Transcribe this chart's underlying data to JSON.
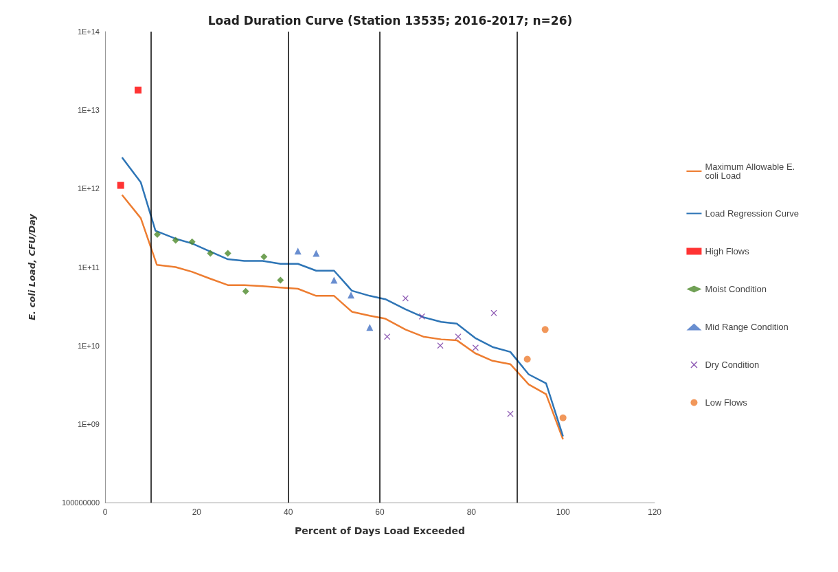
{
  "chart_data": {
    "type": "line",
    "title": "Load Duration Curve (Station 13535; 2016-2017; n=26)",
    "xlabel": "Percent of Days Load Exceeded",
    "ylabel": "E. coli Load, CFU/Day",
    "xlim": [
      0,
      120
    ],
    "xticks": [
      0,
      20,
      40,
      60,
      80,
      100,
      120
    ],
    "ylim": [
      100000000,
      100000000000000
    ],
    "yticks": [
      {
        "value": 100000000,
        "label": "100000000"
      },
      {
        "value": 1000000000,
        "label": "1E+09"
      },
      {
        "value": 10000000000,
        "label": "1E+10"
      },
      {
        "value": 100000000000,
        "label": "1E+11"
      },
      {
        "value": 1000000000000,
        "label": "1E+12"
      },
      {
        "value": 10000000000000,
        "label": "1E+13"
      },
      {
        "value": 100000000000000,
        "label": "1E+14"
      }
    ],
    "log": "y",
    "grid": false,
    "legend": "right",
    "ref_lines": [
      {
        "axis": "x",
        "value": 10,
        "label": null,
        "color": "#000000"
      },
      {
        "axis": "x",
        "value": 40,
        "label": null,
        "color": "#000000"
      },
      {
        "axis": "x",
        "value": 60,
        "label": null,
        "color": "#000000"
      },
      {
        "axis": "x",
        "value": 90,
        "label": null,
        "color": "#000000"
      }
    ],
    "series": [
      {
        "name": "Maximum Allowable E. coli Load",
        "marker": "none",
        "color": "#ed7d31",
        "x": [
          3.7,
          7.8,
          11.3,
          15.4,
          19.0,
          22.7,
          26.8,
          30.4,
          34.4,
          38.3,
          42.1,
          46.1,
          50.0,
          53.9,
          57.8,
          61.2,
          65.6,
          69.5,
          73.4,
          76.8,
          80.8,
          84.6,
          88.5,
          92.5,
          96.3,
          100
        ],
        "values": [
          830000000000,
          420000000000,
          107000000000,
          100000000000,
          87000000000,
          72000000000,
          59000000000,
          59000000000,
          57000000000,
          55000000000,
          53000000000,
          43000000000,
          43000000000,
          27000000000,
          24000000000,
          22000000000,
          16000000000,
          13000000000,
          12000000000,
          11700000000,
          8000000000,
          6400000000,
          5800000000,
          3200000000,
          2400000000,
          640000000
        ]
      },
      {
        "name": "Load Regression Curve",
        "marker": "none",
        "color": "#2e75b6",
        "x": [
          3.7,
          7.8,
          11.0,
          15.4,
          19.0,
          22.7,
          26.8,
          30.4,
          34.4,
          38.3,
          42.1,
          46.1,
          50.0,
          53.9,
          57.8,
          61.2,
          65.6,
          69.5,
          73.4,
          76.8,
          80.8,
          84.6,
          88.5,
          92.5,
          96.3,
          100
        ],
        "values": [
          2500000000000,
          1200000000000,
          290000000000,
          230000000000,
          200000000000,
          160000000000,
          126000000000,
          120000000000,
          120000000000,
          110000000000,
          110000000000,
          90000000000,
          90000000000,
          50000000000,
          43000000000,
          39000000000,
          29000000000,
          23000000000,
          20000000000,
          19000000000,
          12500000000,
          9600000000,
          8300000000,
          4300000000,
          3300000000,
          700000000
        ]
      },
      {
        "name": "High Flows",
        "type": "scatter",
        "marker": "square",
        "color": "#ff0000",
        "x": [
          3.4,
          7.2
        ],
        "values": [
          1100000000000,
          18000000000000
        ]
      },
      {
        "name": "Moist Condition",
        "type": "scatter",
        "marker": "diamond",
        "color": "#4e8a2c",
        "x": [
          11.4,
          15.4,
          19.0,
          23.0,
          26.8,
          30.7,
          34.7,
          38.3
        ],
        "values": [
          260000000000,
          220000000000,
          210000000000,
          150000000000,
          150000000000,
          49000000000,
          135000000000,
          68000000000
        ]
      },
      {
        "name": "Mid Range Condition",
        "type": "scatter",
        "marker": "triangle",
        "color": "#4472c4",
        "x": [
          42.1,
          46.1,
          50.0,
          53.7,
          57.8
        ],
        "values": [
          160000000000,
          150000000000,
          68000000000,
          44000000000,
          17000000000
        ]
      },
      {
        "name": "Dry Condition",
        "type": "scatter",
        "marker": "cross",
        "color": "#7030a0",
        "x": [
          61.6,
          65.6,
          69.2,
          73.2,
          77.1,
          80.9,
          84.9,
          88.5
        ],
        "values": [
          13000000000,
          40000000000,
          23500000000,
          10000000000,
          13000000000,
          9400000000,
          26000000000,
          1350000000
        ]
      },
      {
        "name": "Low Flows",
        "type": "scatter",
        "marker": "circle",
        "color": "#ed7d31",
        "x": [
          92.2,
          96.1,
          100
        ],
        "values": [
          6700000000,
          16000000000,
          1200000000
        ]
      }
    ]
  }
}
